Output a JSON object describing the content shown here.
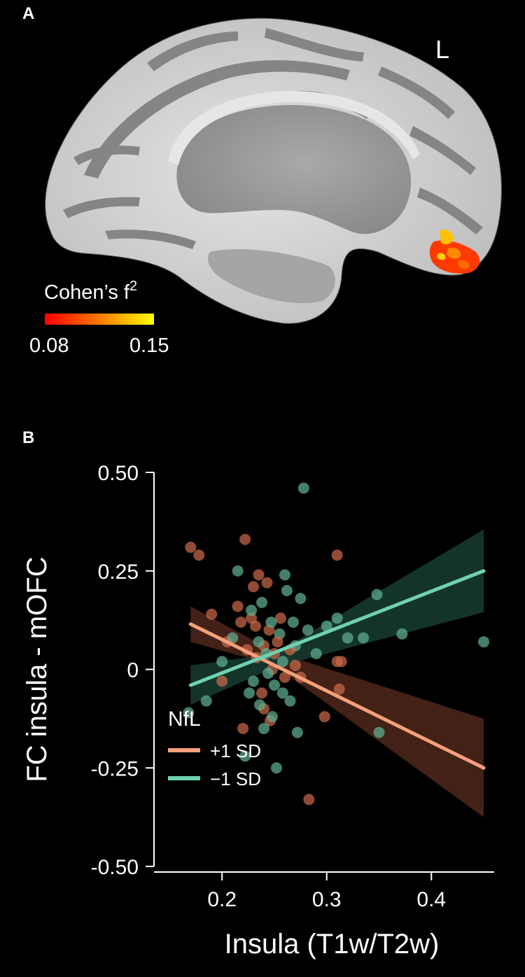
{
  "panels": {
    "a_label": "A",
    "b_label": "B"
  },
  "brain": {
    "hemisphere_label": "L",
    "colorbar": {
      "title": "Cohen’s f",
      "title_superscript": "2",
      "min_label": "0.08",
      "max_label": "0.15",
      "colors": [
        "#ff0000",
        "#ff7a00",
        "#ffff00"
      ]
    },
    "colors": {
      "sulcus": "#808080",
      "gyrus": "#cfcfcf",
      "medial_wall": "#9a9a9a"
    }
  },
  "chart_data": {
    "type": "scatter",
    "xlabel": "Insula (T1w/T2w)",
    "ylabel": "FC insula - mOFC",
    "xlim": [
      0.135,
      0.46
    ],
    "ylim": [
      -0.5,
      0.5
    ],
    "xticks": [
      0.2,
      0.3,
      0.4
    ],
    "xtick_labels": [
      "0.2",
      "0.3",
      "0.4"
    ],
    "yticks": [
      0.5,
      0.25,
      0,
      -0.25,
      -0.5
    ],
    "ytick_labels": [
      "0.50",
      "0.25",
      "0",
      "-0.25",
      "-0.50"
    ],
    "legend": {
      "title": "NfL",
      "placement": "bottom-left"
    },
    "series": [
      {
        "name": "+1 SD",
        "color": "#f4a07a",
        "band_color": "#4a2518",
        "point_color": "#c9684a",
        "line": {
          "x": [
            0.17,
            0.45
          ],
          "y": [
            0.115,
            -0.25
          ]
        },
        "band": {
          "x": [
            0.17,
            0.25,
            0.45
          ],
          "lower": [
            0.07,
            0.01,
            -0.375
          ],
          "upper": [
            0.16,
            0.045,
            -0.125
          ]
        },
        "points": [
          [
            0.17,
            0.31
          ],
          [
            0.178,
            0.29
          ],
          [
            0.19,
            0.14
          ],
          [
            0.2,
            -0.03
          ],
          [
            0.215,
            0.16
          ],
          [
            0.218,
            0.12
          ],
          [
            0.22,
            -0.15
          ],
          [
            0.224,
            0.05
          ],
          [
            0.228,
            0.13
          ],
          [
            0.23,
            0.21
          ],
          [
            0.233,
            0.03
          ],
          [
            0.235,
            0.24
          ],
          [
            0.238,
            -0.06
          ],
          [
            0.24,
            0.06
          ],
          [
            0.243,
            0.22
          ],
          [
            0.245,
            0.1
          ],
          [
            0.248,
            0.0
          ],
          [
            0.25,
            0.04
          ],
          [
            0.253,
            0.07
          ],
          [
            0.256,
            0.13
          ],
          [
            0.26,
            -0.02
          ],
          [
            0.265,
            0.05
          ],
          [
            0.27,
            0.01
          ],
          [
            0.283,
            -0.33
          ],
          [
            0.298,
            -0.12
          ],
          [
            0.31,
            0.02
          ],
          [
            0.312,
            -0.05
          ],
          [
            0.314,
            0.02
          ],
          [
            0.31,
            0.29
          ],
          [
            0.24,
            -0.1
          ],
          [
            0.205,
            0.07
          ],
          [
            0.222,
            0.33
          ],
          [
            0.232,
            0.11
          ],
          [
            0.246,
            -0.13
          ],
          [
            0.275,
            -0.02
          ]
        ]
      },
      {
        "name": "−1 SD",
        "color": "#6fd1b0",
        "band_color": "#163a30",
        "point_color": "#5fae92",
        "line": {
          "x": [
            0.17,
            0.45
          ],
          "y": [
            -0.04,
            0.25
          ]
        },
        "band": {
          "x": [
            0.17,
            0.25,
            0.45
          ],
          "lower": [
            -0.09,
            0.005,
            0.145
          ],
          "upper": [
            0.01,
            0.04,
            0.355
          ]
        },
        "points": [
          [
            0.168,
            -0.11
          ],
          [
            0.185,
            -0.08
          ],
          [
            0.2,
            0.02
          ],
          [
            0.21,
            0.08
          ],
          [
            0.215,
            0.25
          ],
          [
            0.222,
            -0.22
          ],
          [
            0.226,
            -0.06
          ],
          [
            0.23,
            -0.03
          ],
          [
            0.235,
            0.07
          ],
          [
            0.238,
            0.17
          ],
          [
            0.24,
            -0.15
          ],
          [
            0.242,
            0.04
          ],
          [
            0.244,
            -0.01
          ],
          [
            0.247,
            0.12
          ],
          [
            0.25,
            -0.04
          ],
          [
            0.252,
            -0.25
          ],
          [
            0.255,
            0.09
          ],
          [
            0.258,
            -0.06
          ],
          [
            0.26,
            0.24
          ],
          [
            0.262,
            0.2
          ],
          [
            0.265,
            -0.08
          ],
          [
            0.268,
            0.12
          ],
          [
            0.272,
            -0.16
          ],
          [
            0.275,
            0.18
          ],
          [
            0.278,
            0.46
          ],
          [
            0.282,
            0.1
          ],
          [
            0.29,
            0.04
          ],
          [
            0.3,
            0.11
          ],
          [
            0.31,
            0.13
          ],
          [
            0.32,
            0.08
          ],
          [
            0.335,
            0.08
          ],
          [
            0.348,
            0.19
          ],
          [
            0.35,
            -0.16
          ],
          [
            0.372,
            0.09
          ],
          [
            0.45,
            0.07
          ],
          [
            0.228,
            0.15
          ],
          [
            0.248,
            -0.12
          ],
          [
            0.258,
            0.02
          ],
          [
            0.236,
            -0.09
          ],
          [
            0.27,
            0.06
          ]
        ]
      }
    ]
  }
}
